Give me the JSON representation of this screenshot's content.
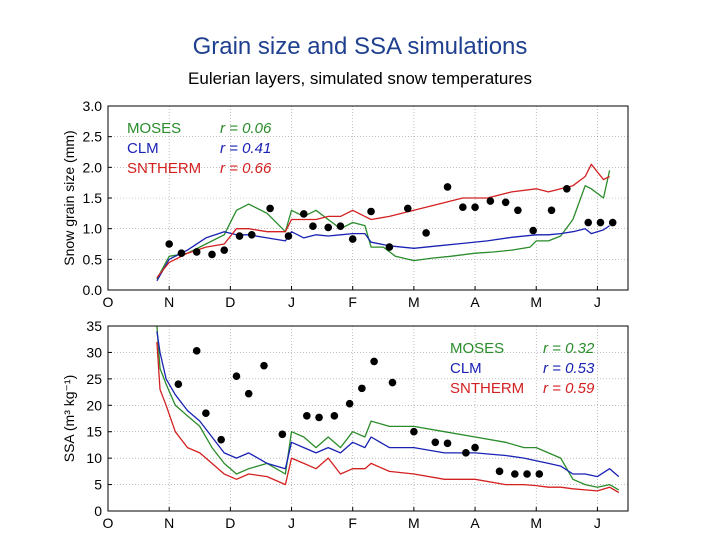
{
  "slide": {
    "title": "Grain size and SSA simulations",
    "subtitle": "Eulerian layers, simulated snow temperatures"
  },
  "colors": {
    "MOSES": "#2a8c2a",
    "CLM": "#1a22b4",
    "SNTHERM": "#d42020",
    "obs": "#000000"
  },
  "chart_data": [
    {
      "type": "line",
      "ylabel": "Snow grain size (mm)",
      "ylim": [
        0,
        3.0
      ],
      "yticks": [
        "0.0",
        "0.5",
        "1.0",
        "1.5",
        "2.0",
        "2.5",
        "3.0"
      ],
      "xlim": [
        0,
        8.5
      ],
      "xticks": [
        "O",
        "N",
        "D",
        "J",
        "F",
        "M",
        "A",
        "M",
        "J"
      ],
      "grid": true,
      "legend_position": "top-left",
      "legend": [
        {
          "name": "MOSES",
          "r_label": "r = 0.06"
        },
        {
          "name": "CLM",
          "r_label": "r = 0.41"
        },
        {
          "name": "SNTHERM",
          "r_label": "r = 0.66"
        }
      ],
      "series": [
        {
          "name": "MOSES",
          "x": [
            0.8,
            1.0,
            1.3,
            1.6,
            1.9,
            2.1,
            2.3,
            2.6,
            2.9,
            3.0,
            3.2,
            3.4,
            3.6,
            3.8,
            4.0,
            4.2,
            4.3,
            4.5,
            4.7,
            5.0,
            5.3,
            5.6,
            6.0,
            6.3,
            6.6,
            6.9,
            7.0,
            7.2,
            7.4,
            7.6,
            7.8,
            7.9,
            8.1,
            8.2
          ],
          "y": [
            0.18,
            0.55,
            0.6,
            0.75,
            0.9,
            1.3,
            1.4,
            1.25,
            0.95,
            1.3,
            1.2,
            1.3,
            1.15,
            1.0,
            1.1,
            1.05,
            0.7,
            0.7,
            0.55,
            0.48,
            0.52,
            0.55,
            0.6,
            0.62,
            0.65,
            0.7,
            0.8,
            0.8,
            0.88,
            1.15,
            1.7,
            1.65,
            1.5,
            1.95
          ]
        },
        {
          "name": "CLM",
          "x": [
            0.8,
            1.0,
            1.3,
            1.6,
            1.9,
            2.1,
            2.3,
            2.6,
            2.9,
            3.0,
            3.2,
            3.4,
            3.6,
            3.8,
            4.0,
            4.2,
            4.3,
            4.6,
            5.0,
            5.4,
            5.8,
            6.2,
            6.6,
            7.0,
            7.2,
            7.4,
            7.6,
            7.8,
            7.9,
            8.1,
            8.2
          ],
          "y": [
            0.15,
            0.5,
            0.65,
            0.85,
            0.95,
            0.9,
            0.9,
            0.85,
            0.8,
            0.95,
            0.85,
            0.9,
            0.88,
            0.9,
            0.92,
            0.92,
            0.78,
            0.72,
            0.68,
            0.72,
            0.76,
            0.8,
            0.86,
            0.9,
            0.9,
            0.92,
            0.95,
            1.0,
            0.92,
            0.98,
            1.05
          ]
        },
        {
          "name": "SNTHERM",
          "x": [
            0.8,
            1.0,
            1.3,
            1.6,
            1.9,
            2.1,
            2.3,
            2.6,
            2.9,
            3.0,
            3.2,
            3.4,
            3.6,
            3.8,
            4.0,
            4.2,
            4.3,
            4.6,
            5.0,
            5.4,
            5.8,
            6.2,
            6.6,
            7.0,
            7.2,
            7.4,
            7.6,
            7.8,
            7.9,
            8.1,
            8.2
          ],
          "y": [
            0.2,
            0.45,
            0.6,
            0.7,
            0.75,
            1.0,
            1.0,
            0.95,
            0.95,
            1.15,
            1.15,
            1.15,
            1.2,
            1.2,
            1.3,
            1.2,
            1.15,
            1.2,
            1.3,
            1.4,
            1.5,
            1.5,
            1.6,
            1.65,
            1.6,
            1.65,
            1.7,
            1.85,
            2.05,
            1.8,
            1.85
          ]
        },
        {
          "name": "obs",
          "style": "points",
          "x": [
            1.0,
            1.2,
            1.45,
            1.7,
            1.9,
            2.15,
            2.35,
            2.65,
            2.95,
            3.2,
            3.35,
            3.6,
            3.8,
            4.0,
            4.3,
            4.6,
            4.9,
            5.2,
            5.55,
            5.8,
            6.0,
            6.25,
            6.5,
            6.7,
            6.95,
            7.25,
            7.5,
            7.85,
            8.05,
            8.25
          ],
          "y": [
            0.75,
            0.6,
            0.62,
            0.58,
            0.65,
            0.88,
            0.9,
            1.33,
            0.88,
            1.24,
            1.04,
            1.02,
            1.04,
            0.83,
            1.28,
            0.7,
            1.33,
            0.93,
            1.68,
            1.35,
            1.35,
            1.45,
            1.43,
            1.3,
            0.97,
            1.3,
            1.65,
            1.1,
            1.1,
            1.1
          ]
        }
      ]
    },
    {
      "type": "line",
      "ylabel": "SSA (m³ kg⁻¹)",
      "ylim": [
        0,
        35
      ],
      "yticks": [
        "0",
        "5",
        "10",
        "15",
        "20",
        "25",
        "30",
        "35"
      ],
      "xlim": [
        0,
        8.5
      ],
      "xticks": [
        "O",
        "N",
        "D",
        "J",
        "F",
        "M",
        "A",
        "M",
        "J"
      ],
      "grid": true,
      "legend_position": "top-right",
      "legend": [
        {
          "name": "MOSES",
          "r_label": "r = 0.32"
        },
        {
          "name": "CLM",
          "r_label": "r = 0.53"
        },
        {
          "name": "SNTHERM",
          "r_label": "r = 0.59"
        }
      ],
      "series": [
        {
          "name": "MOSES",
          "x": [
            0.8,
            0.85,
            0.95,
            1.1,
            1.3,
            1.5,
            1.7,
            1.9,
            2.1,
            2.3,
            2.6,
            2.9,
            3.0,
            3.2,
            3.4,
            3.6,
            3.8,
            4.0,
            4.2,
            4.3,
            4.6,
            5.0,
            5.5,
            6.0,
            6.5,
            6.8,
            7.0,
            7.2,
            7.4,
            7.6,
            7.8,
            8.0,
            8.2,
            8.35
          ],
          "y": [
            35,
            27,
            24,
            20,
            18,
            16,
            12,
            9,
            7,
            8,
            9,
            7,
            15,
            14,
            12,
            14,
            12,
            15,
            14,
            17,
            16,
            16,
            15,
            14,
            13,
            12,
            12,
            11,
            10,
            6,
            5,
            4.5,
            5,
            4
          ],
          "xlabel_hint": ""
        },
        {
          "name": "CLM",
          "x": [
            0.8,
            0.85,
            0.95,
            1.1,
            1.3,
            1.5,
            1.7,
            1.9,
            2.1,
            2.3,
            2.6,
            2.9,
            3.0,
            3.2,
            3.4,
            3.6,
            3.8,
            4.0,
            4.2,
            4.3,
            4.6,
            5.0,
            5.5,
            6.0,
            6.5,
            6.8,
            7.0,
            7.2,
            7.4,
            7.6,
            7.8,
            8.0,
            8.2,
            8.35
          ],
          "y": [
            34,
            30,
            25,
            22,
            19,
            17,
            14,
            11,
            10,
            11,
            9,
            8,
            13,
            12,
            11,
            12,
            11,
            13,
            12,
            14,
            12,
            12,
            11,
            11,
            10.5,
            10,
            9.5,
            9,
            8.5,
            7,
            7,
            6.5,
            8,
            6.5
          ]
        },
        {
          "name": "SNTHERM",
          "x": [
            0.8,
            0.85,
            0.95,
            1.1,
            1.3,
            1.5,
            1.7,
            1.9,
            2.1,
            2.3,
            2.6,
            2.9,
            3.0,
            3.2,
            3.4,
            3.6,
            3.8,
            4.0,
            4.2,
            4.3,
            4.6,
            5.0,
            5.5,
            6.0,
            6.5,
            6.8,
            7.0,
            7.2,
            7.4,
            7.6,
            7.8,
            8.0,
            8.2,
            8.35
          ],
          "y": [
            32,
            23,
            20,
            15,
            12,
            11,
            9,
            7,
            6,
            7,
            6.5,
            5,
            10,
            9,
            8,
            10,
            7,
            8,
            8,
            9,
            7.5,
            7,
            6,
            6,
            5,
            5,
            4.8,
            4.5,
            4.5,
            4.2,
            4,
            3.8,
            4.5,
            3.5
          ]
        },
        {
          "name": "obs",
          "style": "points",
          "x": [
            1.15,
            1.45,
            1.6,
            1.85,
            2.1,
            2.3,
            2.55,
            2.85,
            3.25,
            3.45,
            3.7,
            3.95,
            4.15,
            4.35,
            4.65,
            5.0,
            5.35,
            5.55,
            5.85,
            6.0,
            6.4,
            6.65,
            6.85,
            7.05
          ],
          "y": [
            24,
            30.3,
            18.5,
            13.5,
            25.5,
            22.2,
            27.5,
            14.5,
            18,
            17.7,
            18,
            20.3,
            23.2,
            28.3,
            24.3,
            15,
            13,
            12.8,
            11,
            12,
            7.5,
            7,
            7,
            7
          ]
        }
      ]
    }
  ]
}
